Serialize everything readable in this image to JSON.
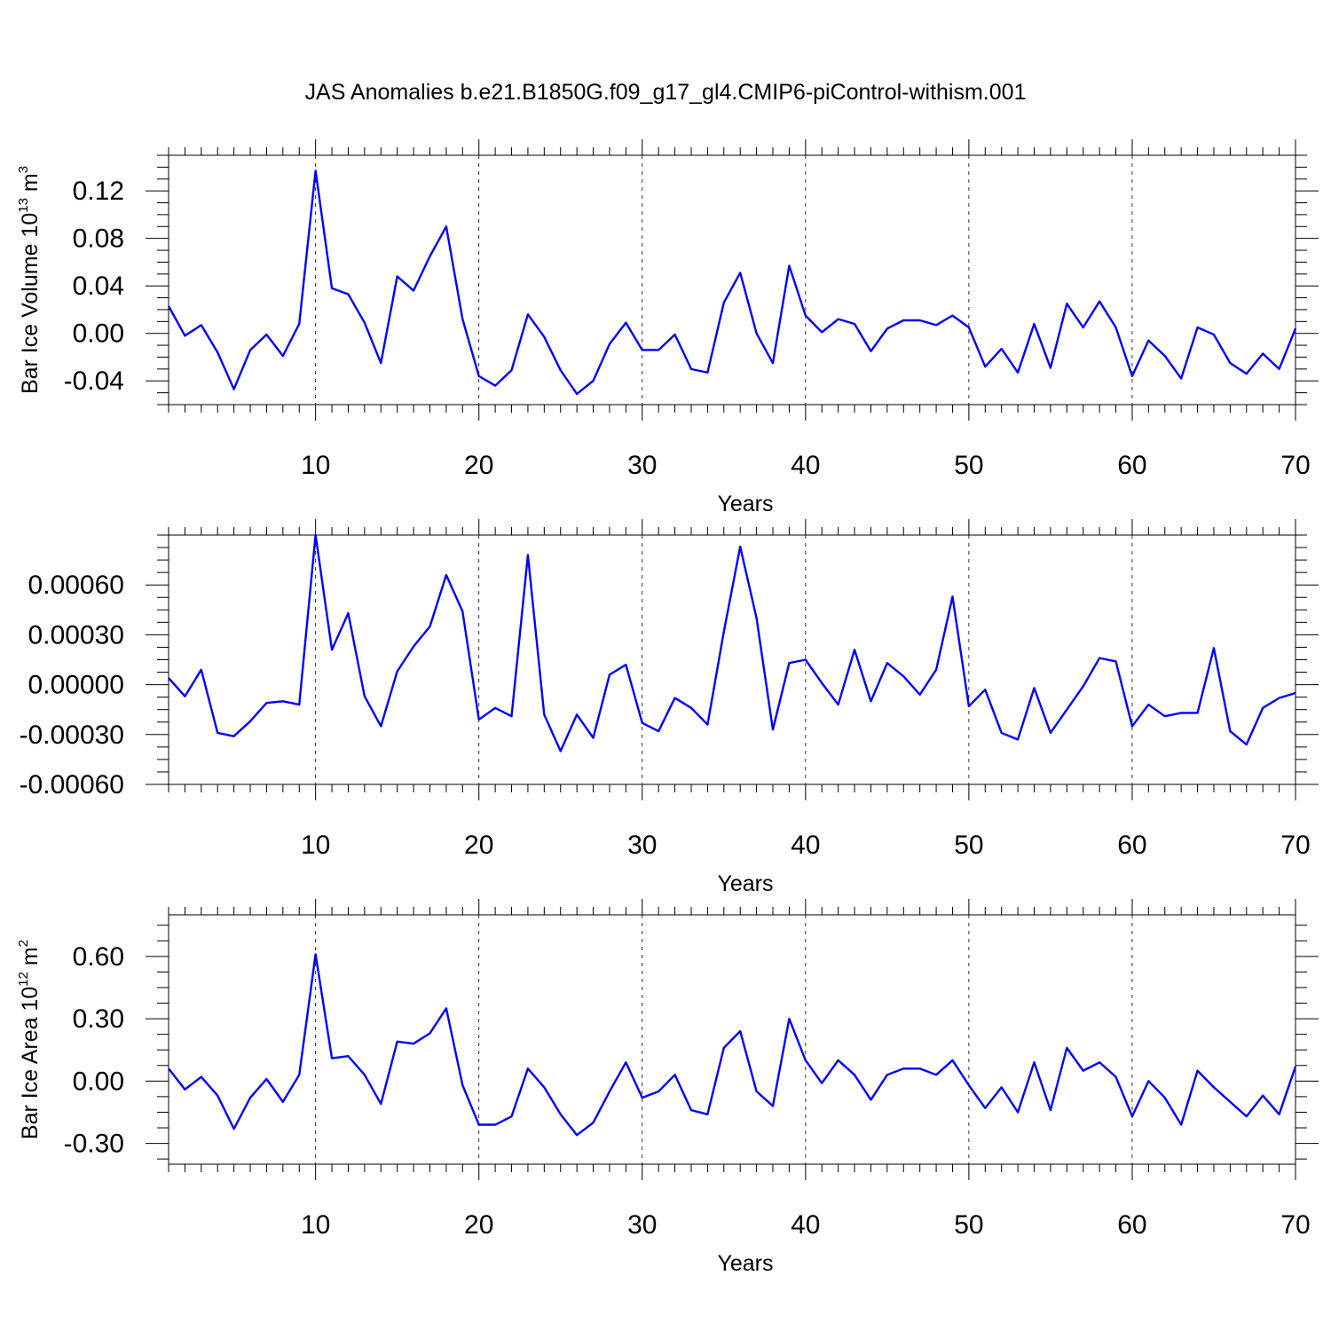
{
  "figure_title": "JAS Anomalies b.e21.B1850G.f09_g17_gl4.CMIP6-piControl-withism.001",
  "colors": {
    "series": "#0000ff",
    "axis": "#000000",
    "grid": "#000000"
  },
  "chart_data": [
    {
      "type": "line",
      "title": "",
      "xlabel": "Years",
      "ylabel": {
        "main": "Bar Ice Volume 10",
        "exp": "13",
        "unit": " m",
        "unit_exp": "3"
      },
      "xlim": [
        1,
        70
      ],
      "ylim": [
        -0.06,
        0.15
      ],
      "xticks": [
        10,
        20,
        30,
        40,
        50,
        60,
        70
      ],
      "xtick_labels": [
        "10",
        "20",
        "30",
        "40",
        "50",
        "60",
        "70"
      ],
      "yticks": [
        -0.04,
        0.0,
        0.04,
        0.08,
        0.12
      ],
      "ytick_labels": [
        "-0.04",
        "0.00",
        "0.04",
        "0.08",
        "0.12"
      ],
      "grid": "vertical dashed at major x ticks",
      "x": [
        1,
        2,
        3,
        4,
        5,
        6,
        7,
        8,
        9,
        10,
        11,
        12,
        13,
        14,
        15,
        16,
        17,
        18,
        19,
        20,
        21,
        22,
        23,
        24,
        25,
        26,
        27,
        28,
        29,
        30,
        31,
        32,
        33,
        34,
        35,
        36,
        37,
        38,
        39,
        40,
        41,
        42,
        43,
        44,
        45,
        46,
        47,
        48,
        49,
        50,
        51,
        52,
        53,
        54,
        55,
        56,
        57,
        58,
        59,
        60,
        61,
        62,
        63,
        64,
        65,
        66,
        67,
        68,
        69,
        70
      ],
      "values": [
        0.023,
        -0.002,
        0.007,
        -0.016,
        -0.047,
        -0.014,
        -0.001,
        -0.019,
        0.008,
        0.137,
        0.038,
        0.033,
        0.009,
        -0.025,
        0.048,
        0.036,
        0.065,
        0.09,
        0.012,
        -0.036,
        -0.044,
        -0.031,
        0.016,
        -0.003,
        -0.031,
        -0.051,
        -0.04,
        -0.009,
        0.009,
        -0.014,
        -0.014,
        -0.001,
        -0.03,
        -0.033,
        0.026,
        0.051,
        0.0,
        -0.025,
        0.057,
        0.015,
        0.001,
        0.012,
        0.008,
        -0.015,
        0.004,
        0.011,
        0.011,
        0.007,
        0.015,
        0.005,
        -0.028,
        -0.013,
        -0.033,
        0.008,
        -0.029,
        0.025,
        0.005,
        0.027,
        0.005,
        -0.036,
        -0.006,
        -0.019,
        -0.038,
        0.005,
        -0.001,
        -0.025,
        -0.034,
        -0.017,
        -0.03,
        0.004
      ]
    },
    {
      "type": "line",
      "title": "",
      "xlabel": "Years",
      "ylabel": null,
      "xlim": [
        1,
        70
      ],
      "ylim": [
        -0.0006,
        0.0009
      ],
      "xticks": [
        10,
        20,
        30,
        40,
        50,
        60,
        70
      ],
      "xtick_labels": [
        "10",
        "20",
        "30",
        "40",
        "50",
        "60",
        "70"
      ],
      "yticks": [
        -0.0006,
        -0.0003,
        0.0,
        0.0003,
        0.0006
      ],
      "ytick_labels": [
        "-0.00060",
        "-0.00030",
        "0.00000",
        "0.00030",
        "0.00060"
      ],
      "grid": "vertical dashed at major x ticks",
      "x": [
        1,
        2,
        3,
        4,
        5,
        6,
        7,
        8,
        9,
        10,
        11,
        12,
        13,
        14,
        15,
        16,
        17,
        18,
        19,
        20,
        21,
        22,
        23,
        24,
        25,
        26,
        27,
        28,
        29,
        30,
        31,
        32,
        33,
        34,
        35,
        36,
        37,
        38,
        39,
        40,
        41,
        42,
        43,
        44,
        45,
        46,
        47,
        48,
        49,
        50,
        51,
        52,
        53,
        54,
        55,
        56,
        57,
        58,
        59,
        60,
        61,
        62,
        63,
        64,
        65,
        66,
        67,
        68,
        69,
        70
      ],
      "values": [
        4e-05,
        -7e-05,
        9e-05,
        -0.00029,
        -0.00031,
        -0.00022,
        -0.00011,
        -0.0001,
        -0.00012,
        0.0009,
        0.00021,
        0.00043,
        -7e-05,
        -0.00025,
        8e-05,
        0.00023,
        0.00035,
        0.00066,
        0.00044,
        -0.00021,
        -0.00014,
        -0.00019,
        0.00078,
        -0.00018,
        -0.0004,
        -0.00018,
        -0.00032,
        6e-05,
        0.00012,
        -0.00023,
        -0.00028,
        -8e-05,
        -0.00014,
        -0.00024,
        0.00032,
        0.00083,
        0.0004,
        -0.00027,
        0.00013,
        0.00015,
        1e-05,
        -0.00012,
        0.00021,
        -0.0001,
        0.00013,
        5e-05,
        -6e-05,
        9e-05,
        0.00053,
        -0.00013,
        -3e-05,
        -0.00029,
        -0.00033,
        -2e-05,
        -0.00029,
        -0.00015,
        -1e-05,
        0.00016,
        0.00014,
        -0.00025,
        -0.00012,
        -0.00019,
        -0.00017,
        -0.00017,
        0.00022,
        -0.00028,
        -0.00036,
        -0.00014,
        -8e-05,
        -5e-05
      ]
    },
    {
      "type": "line",
      "title": "",
      "xlabel": "Years",
      "ylabel": {
        "main": "Bar Ice Area 10",
        "exp": "12",
        "unit": " m",
        "unit_exp": "2"
      },
      "xlim": [
        1,
        70
      ],
      "ylim": [
        -0.4,
        0.8
      ],
      "xticks": [
        10,
        20,
        30,
        40,
        50,
        60,
        70
      ],
      "xtick_labels": [
        "10",
        "20",
        "30",
        "40",
        "50",
        "60",
        "70"
      ],
      "yticks": [
        -0.3,
        0.0,
        0.3,
        0.6
      ],
      "ytick_labels": [
        "-0.30",
        "0.00",
        "0.30",
        "0.60"
      ],
      "grid": "vertical dashed at major x ticks",
      "x": [
        1,
        2,
        3,
        4,
        5,
        6,
        7,
        8,
        9,
        10,
        11,
        12,
        13,
        14,
        15,
        16,
        17,
        18,
        19,
        20,
        21,
        22,
        23,
        24,
        25,
        26,
        27,
        28,
        29,
        30,
        31,
        32,
        33,
        34,
        35,
        36,
        37,
        38,
        39,
        40,
        41,
        42,
        43,
        44,
        45,
        46,
        47,
        48,
        49,
        50,
        51,
        52,
        53,
        54,
        55,
        56,
        57,
        58,
        59,
        60,
        61,
        62,
        63,
        64,
        65,
        66,
        67,
        68,
        69,
        70
      ],
      "values": [
        0.06,
        -0.04,
        0.02,
        -0.07,
        -0.23,
        -0.08,
        0.01,
        -0.1,
        0.03,
        0.61,
        0.11,
        0.12,
        0.03,
        -0.11,
        0.19,
        0.18,
        0.23,
        0.35,
        -0.02,
        -0.21,
        -0.21,
        -0.17,
        0.06,
        -0.03,
        -0.16,
        -0.26,
        -0.2,
        -0.05,
        0.09,
        -0.08,
        -0.05,
        0.03,
        -0.14,
        -0.16,
        0.16,
        0.24,
        -0.05,
        -0.12,
        0.3,
        0.1,
        -0.01,
        0.1,
        0.03,
        -0.09,
        0.03,
        0.06,
        0.06,
        0.03,
        0.1,
        -0.02,
        -0.13,
        -0.03,
        -0.15,
        0.09,
        -0.14,
        0.16,
        0.05,
        0.09,
        0.02,
        -0.17,
        0.0,
        -0.08,
        -0.21,
        0.05,
        -0.03,
        -0.1,
        -0.17,
        -0.07,
        -0.16,
        0.07
      ]
    }
  ]
}
